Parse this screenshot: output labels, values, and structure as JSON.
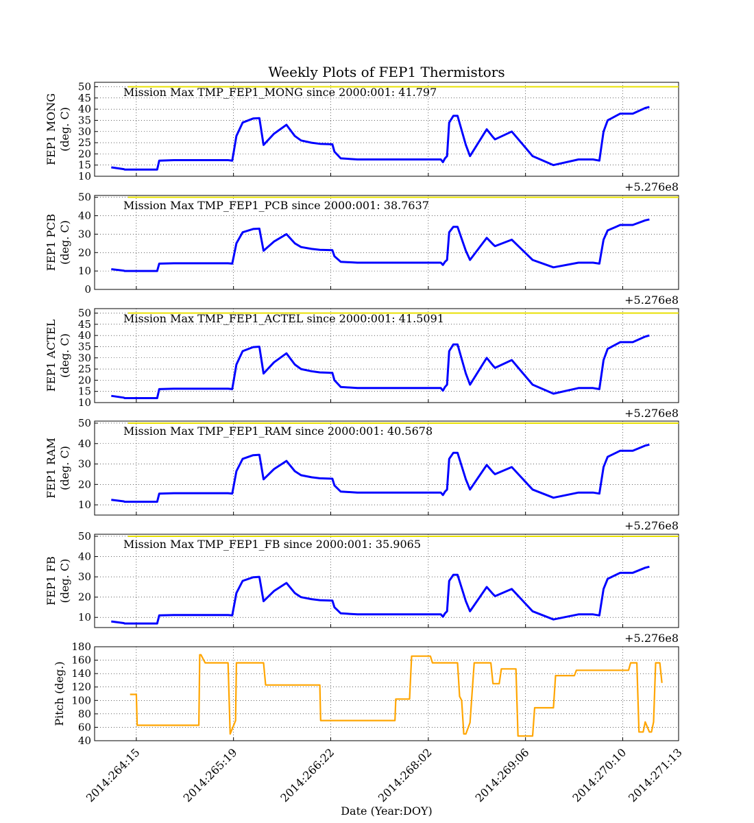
{
  "figure_title": "Weekly Plots of FEP1 Thermistors",
  "offset_label": "+5.276e8",
  "xlabel": "Date (Year:DOY)",
  "x_tick_labels": [
    "2014:264:15",
    "2014:265:19",
    "2014:266:22",
    "2014:268:02",
    "2014:269:06",
    "2014:270:10",
    "2014:271:13"
  ],
  "chart_data": [
    {
      "type": "line",
      "ylabel": "FEP1 MONG\n(deg. C)",
      "annotation": "Mission Max TMP_FEP1_MONG since 2000:001: 41.797",
      "ylim": [
        10,
        52
      ],
      "yticks": [
        10,
        15,
        20,
        25,
        30,
        35,
        40,
        45,
        50
      ],
      "limit_line": 50,
      "series": [
        {
          "color": "#0000ff",
          "x": [
            0.4,
            0.7,
            0.72,
            0.8,
            1.0,
            1.2,
            1.5,
            1.55,
            1.9,
            2.3,
            2.6,
            2.7,
            2.85,
            3.1,
            3.2,
            3.3,
            3.4,
            3.55,
            3.8,
            3.95,
            4.05,
            4.3,
            4.6,
            4.8,
            4.95,
            5.2,
            5.4,
            5.7,
            5.75,
            5.9,
            6.3,
            6.6,
            6.7,
            6.95,
            7.0,
            7.15,
            7.25,
            7.35,
            7.4,
            7.45,
            7.55,
            7.7,
            7.8,
            7.9,
            8.0,
            8.1,
            8.2,
            8.3,
            8.35,
            8.4,
            8.45,
            8.5,
            8.6,
            8.7,
            8.9,
            9.0,
            9.2,
            9.4,
            9.55,
            9.6,
            10.0,
            10.5,
            11.0,
            11.6,
            11.65,
            11.8,
            11.95,
            12.1,
            12.2,
            12.3,
            12.5,
            12.6,
            12.7,
            12.9,
            13.2,
            13.3
          ],
          "values": [
            14,
            13.2,
            13,
            13,
            13,
            13,
            13,
            17,
            17.2,
            17.2,
            17.2,
            17.2,
            17.2,
            17.2,
            17.2,
            17,
            28,
            34,
            35.8,
            36,
            24,
            29,
            33,
            28,
            26,
            25,
            24.5,
            24.3,
            21,
            18,
            17.5,
            17.5,
            17.5,
            17.5,
            17.5,
            17.5,
            17.5,
            17.5,
            17.5,
            17.5,
            17.5,
            17.5,
            17.5,
            17.5,
            17.5,
            17.5,
            17.5,
            17.5,
            16.3,
            18,
            19,
            34,
            37,
            37,
            24,
            19,
            25,
            31,
            27.5,
            26.5,
            30,
            19,
            15,
            17.5,
            17.5,
            17.5,
            17.5,
            17,
            30,
            35,
            37,
            38,
            38,
            38,
            40.5,
            41
          ]
        }
      ]
    },
    {
      "type": "line",
      "ylabel": "FEP1 PCB\n(deg. C)",
      "annotation": "Mission Max TMP_FEP1_PCB since 2000:001: 38.7637",
      "ylim": [
        0,
        51
      ],
      "yticks": [
        0,
        10,
        20,
        30,
        40,
        50
      ],
      "limit_line": 50,
      "series": [
        {
          "color": "#0000ff",
          "x": [],
          "values": []
        }
      ]
    },
    {
      "type": "line",
      "ylabel": "FEP1 ACTEL\n(deg. C)",
      "annotation": "Mission Max TMP_FEP1_ACTEL since 2000:001: 41.5091",
      "ylim": [
        10,
        52
      ],
      "yticks": [
        10,
        15,
        20,
        25,
        30,
        35,
        40,
        45,
        50
      ],
      "limit_line": 50,
      "series": [
        {
          "color": "#0000ff",
          "x": [],
          "values": []
        }
      ]
    },
    {
      "type": "line",
      "ylabel": "FEP1 RAM\n(deg. C)",
      "annotation": "Mission Max TMP_FEP1_RAM since 2000:001: 40.5678",
      "ylim": [
        5,
        51
      ],
      "yticks": [
        10,
        20,
        30,
        40,
        50
      ],
      "limit_line": 50,
      "series": [
        {
          "color": "#0000ff",
          "x": [],
          "values": []
        }
      ]
    },
    {
      "type": "line",
      "ylabel": "FEP1 FB\n(deg. C)",
      "annotation": "Mission Max TMP_FEP1_FB since 2000:001: 35.9065",
      "ylim": [
        5,
        51
      ],
      "yticks": [
        10,
        20,
        30,
        40,
        50
      ],
      "limit_line": 50,
      "series": [
        {
          "color": "#0000ff",
          "x": [],
          "values": []
        }
      ]
    },
    {
      "type": "line",
      "ylabel": "Pitch (deg.)",
      "annotation": "",
      "ylim": [
        40,
        180
      ],
      "yticks": [
        40,
        60,
        80,
        100,
        120,
        140,
        160,
        180
      ],
      "limit_line": null,
      "series": [
        {
          "color": "#ffa500",
          "x": [
            0.85,
            1.0,
            1.02,
            1.05,
            2.5,
            2.52,
            2.55,
            2.65,
            3.2,
            3.25,
            3.38,
            3.4,
            3.45,
            3.55,
            4.05,
            4.1,
            5.4,
            5.42,
            6.1,
            6.15,
            7.2,
            7.22,
            7.55,
            7.6,
            8.05,
            8.1,
            8.7,
            8.75,
            8.8,
            8.85,
            8.9,
            9.0,
            9.1,
            9.15,
            9.5,
            9.55,
            9.7,
            9.75,
            10.1,
            10.15,
            10.5,
            10.55,
            11.0,
            11.05,
            11.5,
            11.55,
            12.8,
            12.85,
            13.0,
            13.05,
            13.15,
            13.2,
            13.3,
            13.35,
            13.4,
            13.45,
            13.55,
            13.6
          ],
          "values": [
            109,
            109,
            63,
            63,
            63,
            168,
            168,
            156,
            156,
            50,
            70,
            156,
            156,
            156,
            156,
            123,
            123,
            70,
            70,
            70,
            70,
            102,
            102,
            166,
            166,
            156,
            156,
            106,
            100,
            50,
            50,
            67,
            156,
            156,
            156,
            125,
            125,
            147,
            147,
            47,
            47,
            89,
            89,
            137,
            137,
            145,
            145,
            156,
            156,
            53,
            53,
            68,
            53,
            53,
            68,
            156,
            156,
            126
          ]
        }
      ]
    }
  ]
}
